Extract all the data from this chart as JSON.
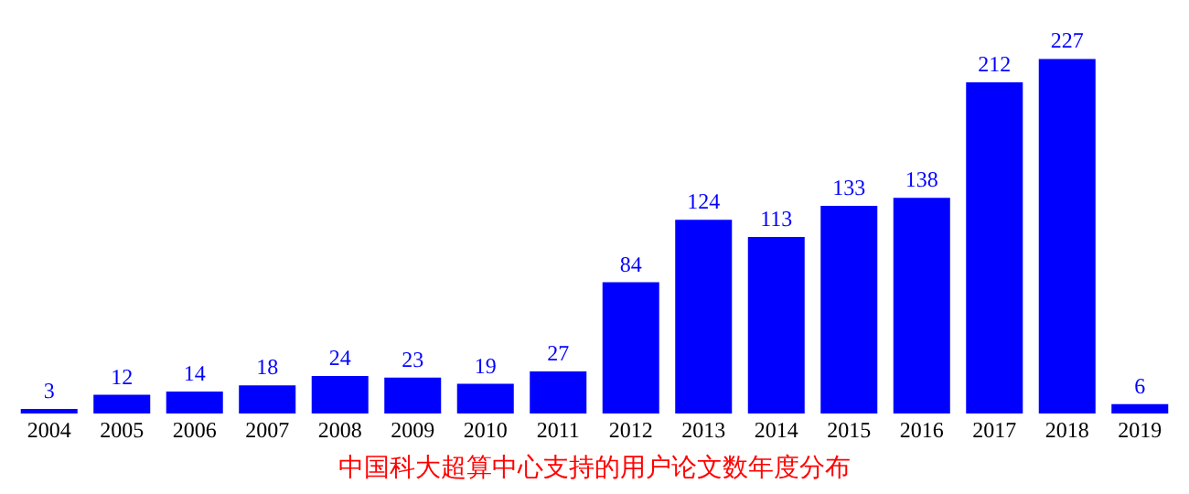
{
  "chart_data": {
    "type": "bar",
    "title": "中国科大超算中心支持的用户论文数年度分布",
    "categories": [
      "2004",
      "2005",
      "2006",
      "2007",
      "2008",
      "2009",
      "2010",
      "2011",
      "2012",
      "2013",
      "2014",
      "2015",
      "2016",
      "2017",
      "2018",
      "2019"
    ],
    "values": [
      3,
      12,
      14,
      18,
      24,
      23,
      19,
      27,
      84,
      124,
      113,
      133,
      138,
      212,
      227,
      6
    ],
    "color": "#0000ff",
    "data_labels": true
  }
}
